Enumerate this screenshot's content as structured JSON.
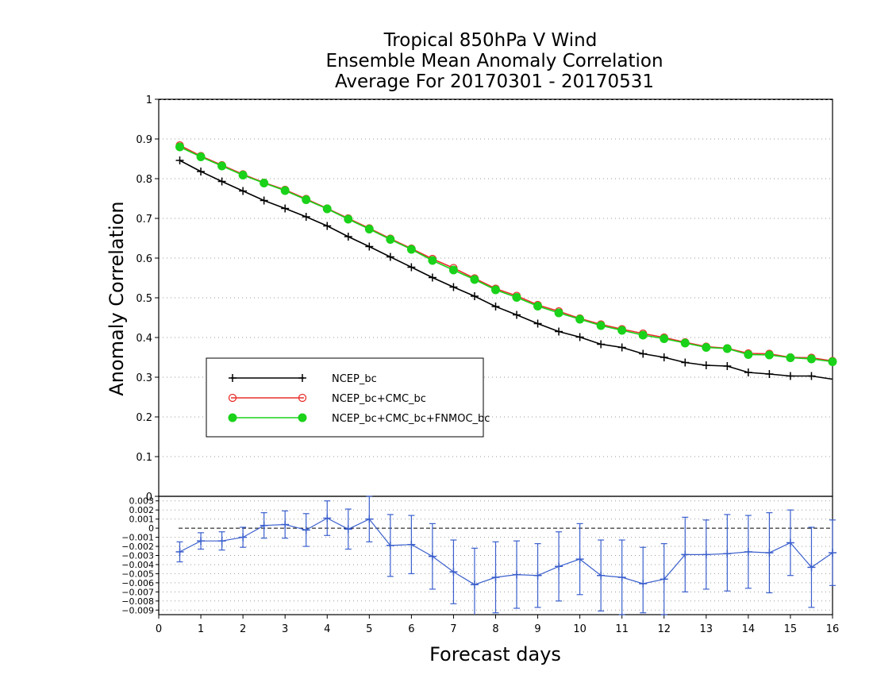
{
  "chart_data": [
    {
      "type": "line",
      "title": [
        "Tropical 850hPa V Wind",
        "Ensemble Mean Anomaly Correlation",
        "Average For 20170301 - 20170531"
      ],
      "ylabel": "Anomaly Correlation",
      "ylim": [
        0,
        1
      ],
      "yticks": [
        "0",
        "0.1",
        "0.2",
        "0.3",
        "0.4",
        "0.5",
        "0.6",
        "0.7",
        "0.8",
        "0.9",
        "1"
      ],
      "grid": true,
      "legend_position": "lower-left",
      "x": [
        0.5,
        1,
        1.5,
        2,
        2.5,
        3,
        3.5,
        4,
        4.5,
        5,
        5.5,
        6,
        6.5,
        7,
        7.5,
        8,
        8.5,
        9,
        9.5,
        10,
        10.5,
        11,
        11.5,
        12,
        12.5,
        13,
        13.5,
        14,
        14.5,
        15,
        15.5,
        16
      ],
      "series": [
        {
          "name": "NCEP_bc",
          "color": "#000000",
          "marker": "plus",
          "values": [
            0.846,
            0.818,
            0.793,
            0.769,
            0.745,
            0.725,
            0.704,
            0.681,
            0.654,
            0.629,
            0.603,
            0.577,
            0.551,
            0.527,
            0.504,
            0.478,
            0.457,
            0.435,
            0.415,
            0.401,
            0.383,
            0.375,
            0.359,
            0.35,
            0.337,
            0.33,
            0.328,
            0.312,
            0.308,
            0.303,
            0.303,
            0.295
          ]
        },
        {
          "name": "NCEP_bc+CMC_bc",
          "color": "#e8302c",
          "marker": "open-circle",
          "values": [
            0.884,
            0.857,
            0.834,
            0.811,
            0.79,
            0.772,
            0.749,
            0.725,
            0.7,
            0.675,
            0.649,
            0.624,
            0.598,
            0.575,
            0.549,
            0.523,
            0.505,
            0.482,
            0.466,
            0.448,
            0.433,
            0.421,
            0.41,
            0.4,
            0.388,
            0.377,
            0.373,
            0.36,
            0.359,
            0.35,
            0.349,
            0.341
          ]
        },
        {
          "name": "NCEP_bc+CMC_bc+FNMOC_bc",
          "color": "#1ad21a",
          "marker": "filled-circle",
          "values": [
            0.88,
            0.855,
            0.832,
            0.809,
            0.789,
            0.77,
            0.747,
            0.724,
            0.698,
            0.673,
            0.647,
            0.622,
            0.594,
            0.57,
            0.546,
            0.52,
            0.501,
            0.479,
            0.462,
            0.446,
            0.43,
            0.418,
            0.406,
            0.397,
            0.386,
            0.375,
            0.372,
            0.357,
            0.356,
            0.349,
            0.346,
            0.339
          ]
        }
      ]
    },
    {
      "type": "line",
      "xlabel": "Forecast days",
      "xlim": [
        0,
        16
      ],
      "xticks": [
        "0",
        "1",
        "2",
        "3",
        "4",
        "5",
        "6",
        "7",
        "8",
        "9",
        "10",
        "11",
        "12",
        "13",
        "14",
        "15",
        "16"
      ],
      "ylim": [
        -0.0095,
        0.0035
      ],
      "yticks": [
        "0.003",
        "0.002",
        "0.001",
        "0",
        "-0.001",
        "-0.002",
        "-0.003",
        "-0.004",
        "-0.005",
        "-0.006",
        "-0.007",
        "-0.008",
        "-0.009"
      ],
      "grid": true,
      "series": [
        {
          "color": "#3a5fcd",
          "marker": "plus",
          "error_bars": true,
          "x": [
            0.5,
            1,
            1.5,
            2,
            2.5,
            3,
            3.5,
            4,
            4.5,
            5,
            5.5,
            6,
            6.5,
            7,
            7.5,
            8,
            8.5,
            9,
            9.5,
            10,
            10.5,
            11,
            11.5,
            12,
            12.5,
            13,
            13.5,
            14,
            14.5,
            15,
            15.5,
            16
          ],
          "values": [
            -0.0026,
            -0.0014,
            -0.0014,
            -0.001,
            0.0003,
            0.0004,
            -0.0002,
            0.0011,
            -0.0001,
            0.001,
            -0.0019,
            -0.0018,
            -0.0031,
            -0.0048,
            -0.0062,
            -0.0054,
            -0.0051,
            -0.0052,
            -0.0042,
            -0.0034,
            -0.0052,
            -0.0054,
            -0.0061,
            -0.0056,
            -0.0029,
            -0.0029,
            -0.0028,
            -0.0026,
            -0.0027,
            -0.0016,
            -0.0043,
            -0.0027
          ],
          "lower": [
            -0.0037,
            -0.0023,
            -0.0024,
            -0.0021,
            -0.0011,
            -0.0011,
            -0.002,
            -0.0008,
            -0.0023,
            -0.0015,
            -0.0053,
            -0.005,
            -0.0067,
            -0.0083,
            -0.0098,
            -0.0093,
            -0.0088,
            -0.0087,
            -0.008,
            -0.0073,
            -0.0091,
            -0.0095,
            -0.0093,
            -0.0095,
            -0.007,
            -0.0067,
            -0.0069,
            -0.0066,
            -0.0071,
            -0.0052,
            -0.0087,
            -0.0063
          ],
          "upper": [
            -0.0015,
            -0.0005,
            -0.0004,
            0.0001,
            0.0017,
            0.0019,
            0.0016,
            0.003,
            0.0021,
            0.0035,
            0.0015,
            0.0014,
            0.0005,
            -0.0013,
            -0.0022,
            -0.0015,
            -0.0014,
            -0.0017,
            -0.0004,
            0.0005,
            -0.0013,
            -0.0013,
            -0.0021,
            -0.0017,
            0.0012,
            0.0009,
            0.0015,
            0.0014,
            0.0017,
            0.002,
            0.0001,
            0.0009
          ]
        }
      ]
    }
  ]
}
